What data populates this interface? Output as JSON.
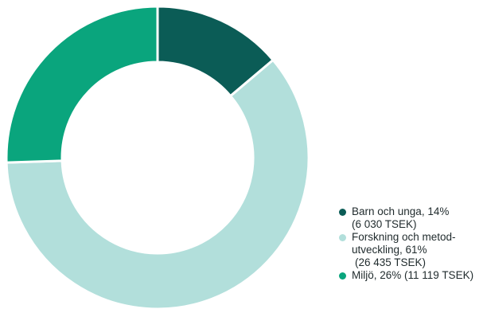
{
  "chart_data": {
    "type": "pie",
    "donut": true,
    "title": "",
    "categories": [
      "Barn och unga",
      "Forskning och metodutveckling",
      "Miljö"
    ],
    "values": [
      6030,
      26435,
      11119
    ],
    "percent": [
      14,
      61,
      26
    ],
    "colors": [
      "#0b5c56",
      "#b2dfdb",
      "#0aa57d"
    ],
    "legend_placement": "bottom-right",
    "legend": [
      {
        "lines": [
          "Barn och unga, 14%",
          "(6 030 TSEK)"
        ]
      },
      {
        "lines": [
          "Forskning och metod-",
          "utveckling, 61%",
          "(26 435 TSEK)"
        ]
      },
      {
        "lines": [
          "Miljö, 26% (11 119 TSEK)"
        ]
      }
    ]
  }
}
